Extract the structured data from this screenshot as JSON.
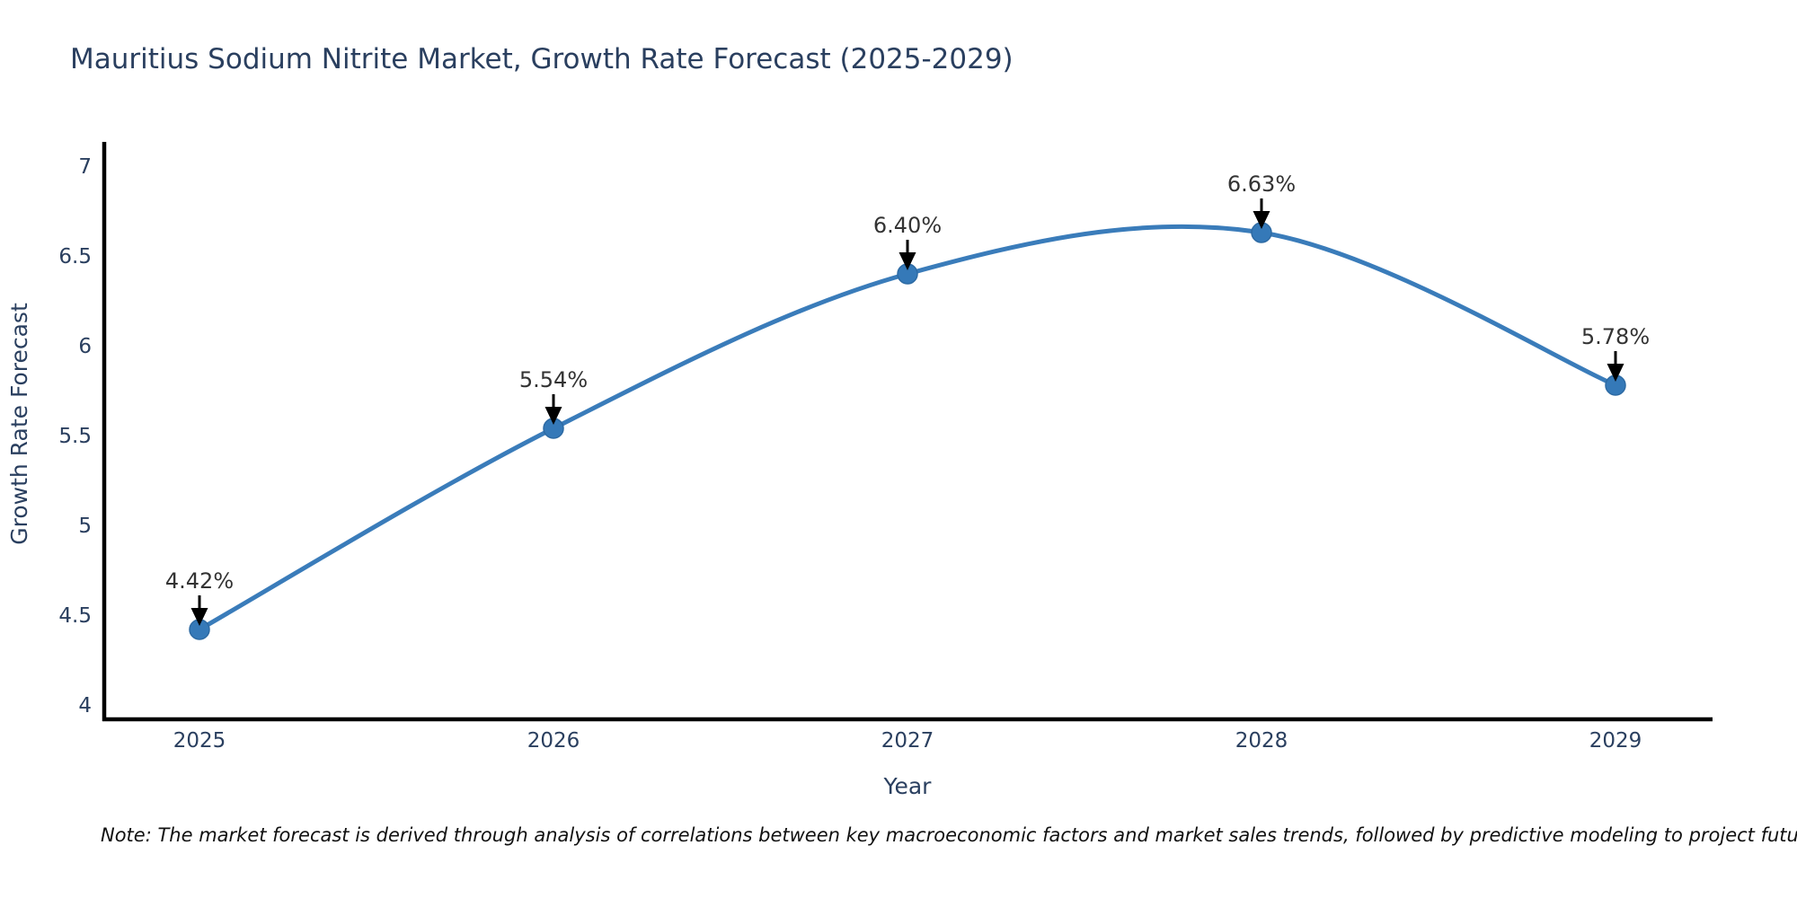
{
  "page": {
    "background": "#ffffff"
  },
  "chart_data": {
    "type": "line",
    "title": "Mauritius Sodium Nitrite Market, Growth Rate Forecast (2025-2029)",
    "categories": [
      "2025",
      "2026",
      "2027",
      "2028",
      "2029"
    ],
    "series": [
      {
        "name": "Growth Rate Forecast",
        "values": [
          4.42,
          5.54,
          6.4,
          6.63,
          5.78
        ]
      }
    ],
    "point_labels": [
      "4.42%",
      "5.54%",
      "6.40%",
      "6.63%",
      "5.78%"
    ],
    "xlabel": "Year",
    "ylabel": "Growth Rate Forecast",
    "ylim": [
      4,
      7
    ],
    "yticks": [
      7,
      6.5,
      6,
      5.5,
      5,
      4.5,
      4
    ],
    "ytick_labels": [
      "7",
      "6.5",
      "6",
      "5.5",
      "5",
      "4.5",
      "4"
    ],
    "line_shape": "spline",
    "grid": false,
    "legend_position": "none",
    "colors": {
      "line": "#3a7cba",
      "marker": "#3579b8",
      "marker_edge": "#2d6aa3",
      "axis": "#000000",
      "title_text": "#2a3f5f",
      "tick_text": "#2a3f5f",
      "annotation_text": "#333333",
      "annotation_arrow": "#000000"
    }
  },
  "note": {
    "text": "Note: The market forecast is derived through analysis of correlations between key macroeconomic factors and market sales trends, followed by predictive modeling to project future sales"
  }
}
